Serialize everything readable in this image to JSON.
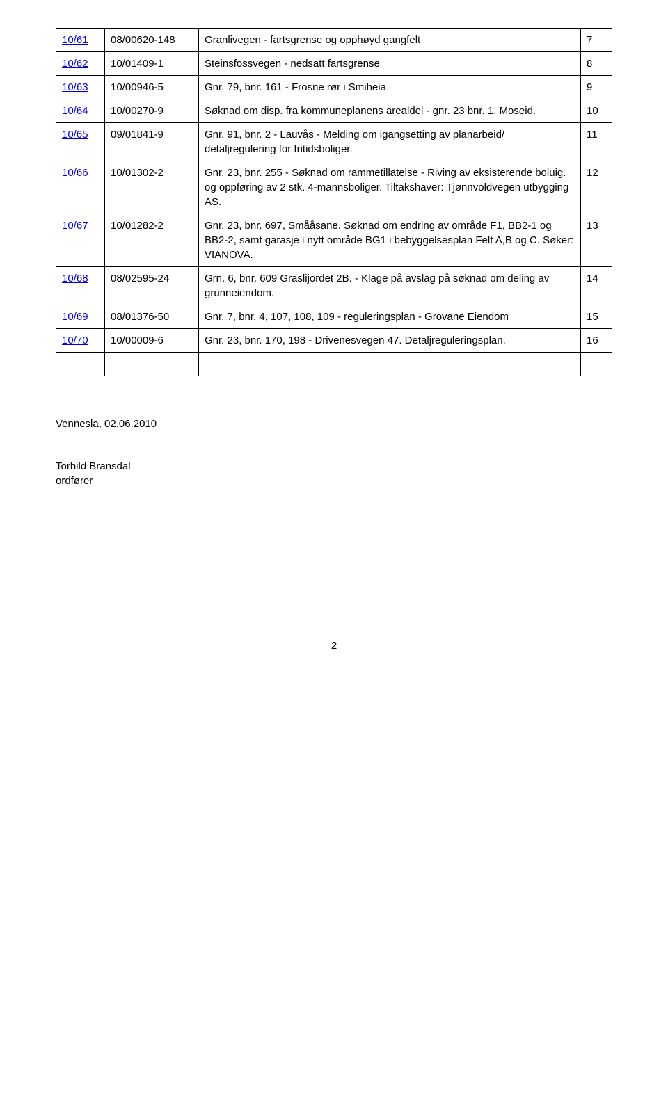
{
  "rows": [
    {
      "id": "10/61",
      "ref": "08/00620-148",
      "desc": "Granlivegen - fartsgrense og opphøyd gangfelt",
      "page": "7"
    },
    {
      "id": "10/62",
      "ref": "10/01409-1",
      "desc": "Steinsfossvegen - nedsatt fartsgrense",
      "page": "8"
    },
    {
      "id": "10/63",
      "ref": "10/00946-5",
      "desc": "Gnr. 79, bnr. 161 - Frosne rør i Smiheia",
      "page": "9"
    },
    {
      "id": "10/64",
      "ref": "10/00270-9",
      "desc": "Søknad om disp. fra kommuneplanens arealdel - gnr. 23 bnr. 1, Moseid.",
      "page": "10"
    },
    {
      "id": "10/65",
      "ref": "09/01841-9",
      "desc": "Gnr. 91, bnr. 2 - Lauvås - Melding om igangsetting av planarbeid/ detaljregulering for fritidsboliger.",
      "page": "11"
    },
    {
      "id": "10/66",
      "ref": "10/01302-2",
      "desc": "Gnr. 23, bnr. 255 - Søknad om rammetillatelse - Riving av eksisterende boluig. og oppføring av 2 stk. 4-mannsboliger. Tiltakshaver: Tjønnvoldvegen utbygging AS.",
      "page": "12"
    },
    {
      "id": "10/67",
      "ref": "10/01282-2",
      "desc": "Gnr. 23, bnr. 697, Smååsane. Søknad om endring av område F1, BB2-1 og BB2-2, samt garasje i nytt område BG1 i bebyggelsesplan Felt A,B og C. Søker: VIANOVA.",
      "page": "13"
    },
    {
      "id": "10/68",
      "ref": "08/02595-24",
      "desc": "Grn. 6, bnr. 609 Graslijordet 2B. - Klage på avslag på søknad om deling  av grunneiendom.",
      "page": "14"
    },
    {
      "id": "10/69",
      "ref": "08/01376-50",
      "desc": "Gnr. 7, bnr. 4, 107, 108, 109 - reguleringsplan - Grovane Eiendom",
      "page": "15"
    },
    {
      "id": "10/70",
      "ref": "10/00009-6",
      "desc": "Gnr. 23, bnr. 170, 198 - Drivenesvegen 47. Detaljreguleringsplan.",
      "page": "16"
    }
  ],
  "footer": {
    "place_date": "Vennesla, 02.06.2010",
    "name": "Torhild Bransdal",
    "title": "ordfører"
  },
  "page_number": "2"
}
